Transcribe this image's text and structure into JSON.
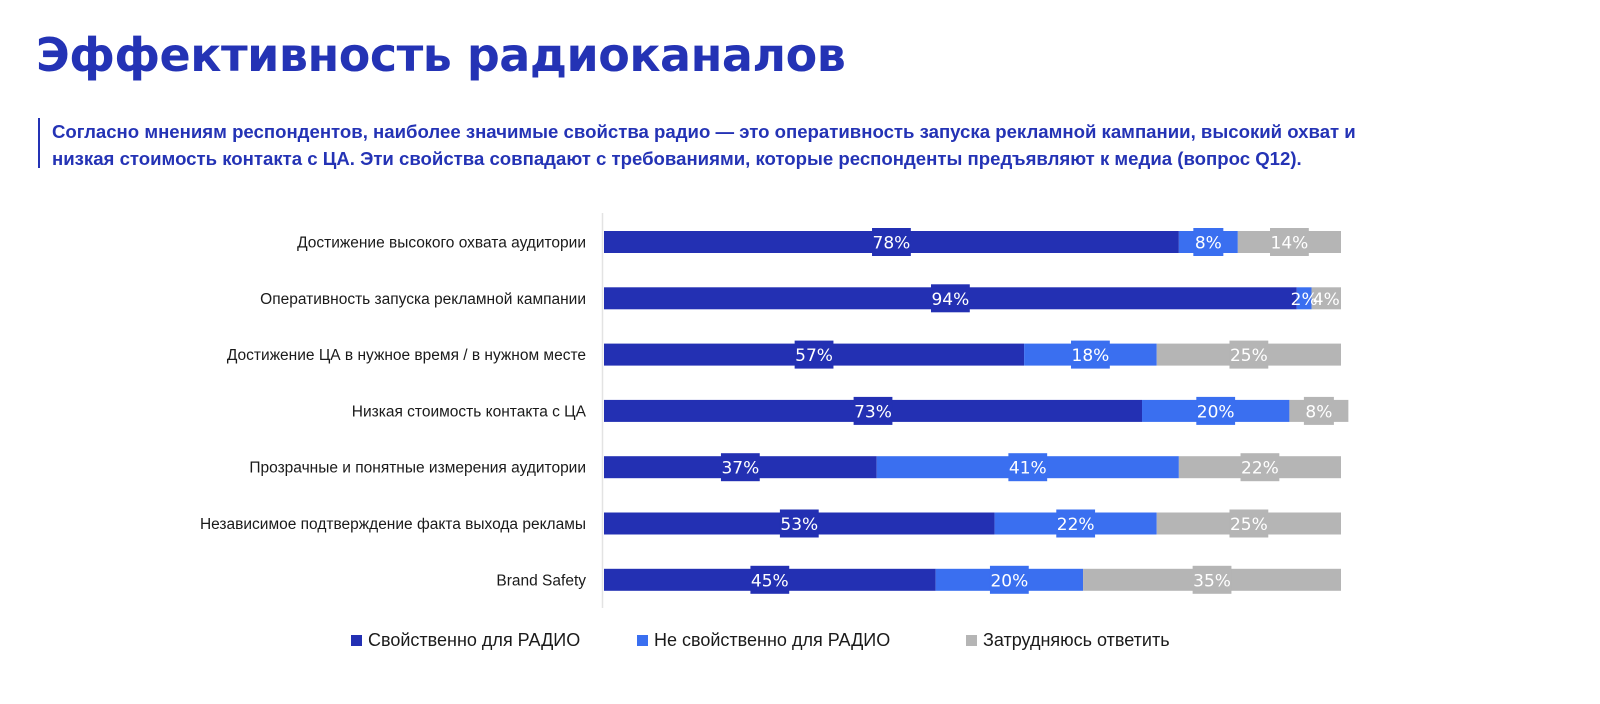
{
  "header": {
    "title": "Эффективность радиоканалов",
    "subtitle_lines": [
      "Согласно мнениям респондентов, наиболее значимые свойства радио — это оперативность запуска рекламной кампании, высокий охват и",
      "низкая стоимость контакта с ЦА. Эти свойства совпадают с требованиями, которые респонденты предъявляют к медиа (вопрос Q12)."
    ]
  },
  "colors": {
    "accent": "#2433b5",
    "series_1": "#2330b3",
    "series_2": "#3a6ff0",
    "series_3": "#b5b5b5"
  },
  "chart_data": {
    "type": "bar",
    "orientation": "horizontal",
    "stacked": true,
    "title": "",
    "xlabel": "",
    "ylabel": "",
    "xlim": [
      0,
      100
    ],
    "grid": false,
    "legend_position": "bottom",
    "categories": [
      "Достижение высокого охвата аудитории",
      "Оперативность запуска рекламной кампании",
      "Достижение ЦА в нужное время / в нужном месте",
      "Низкая стоимость контакта с ЦА",
      "Прозрачные и понятные измерения аудитории",
      "Независимое подтверждение факта выхода рекламы",
      "Brand Safety"
    ],
    "series": [
      {
        "name": "Свойственно для РАДИО",
        "color": "#2330b3",
        "values": [
          78,
          94,
          57,
          73,
          37,
          53,
          45
        ],
        "labels": [
          "78%",
          "94%",
          "57%",
          "73%",
          "37%",
          "53%",
          "45%"
        ]
      },
      {
        "name": "Не свойственно для РАДИО",
        "color": "#3a6ff0",
        "values": [
          8,
          2,
          18,
          20,
          41,
          22,
          20
        ],
        "labels": [
          "8%",
          "2%",
          "18%",
          "20%",
          "41%",
          "22%",
          "20%"
        ]
      },
      {
        "name": "Затрудняюсь ответить",
        "color": "#b5b5b5",
        "values": [
          14,
          4,
          25,
          8,
          22,
          25,
          35
        ],
        "labels": [
          "14%",
          "4%",
          "25%",
          "8%",
          "22%",
          "25%",
          "35%"
        ]
      }
    ]
  }
}
